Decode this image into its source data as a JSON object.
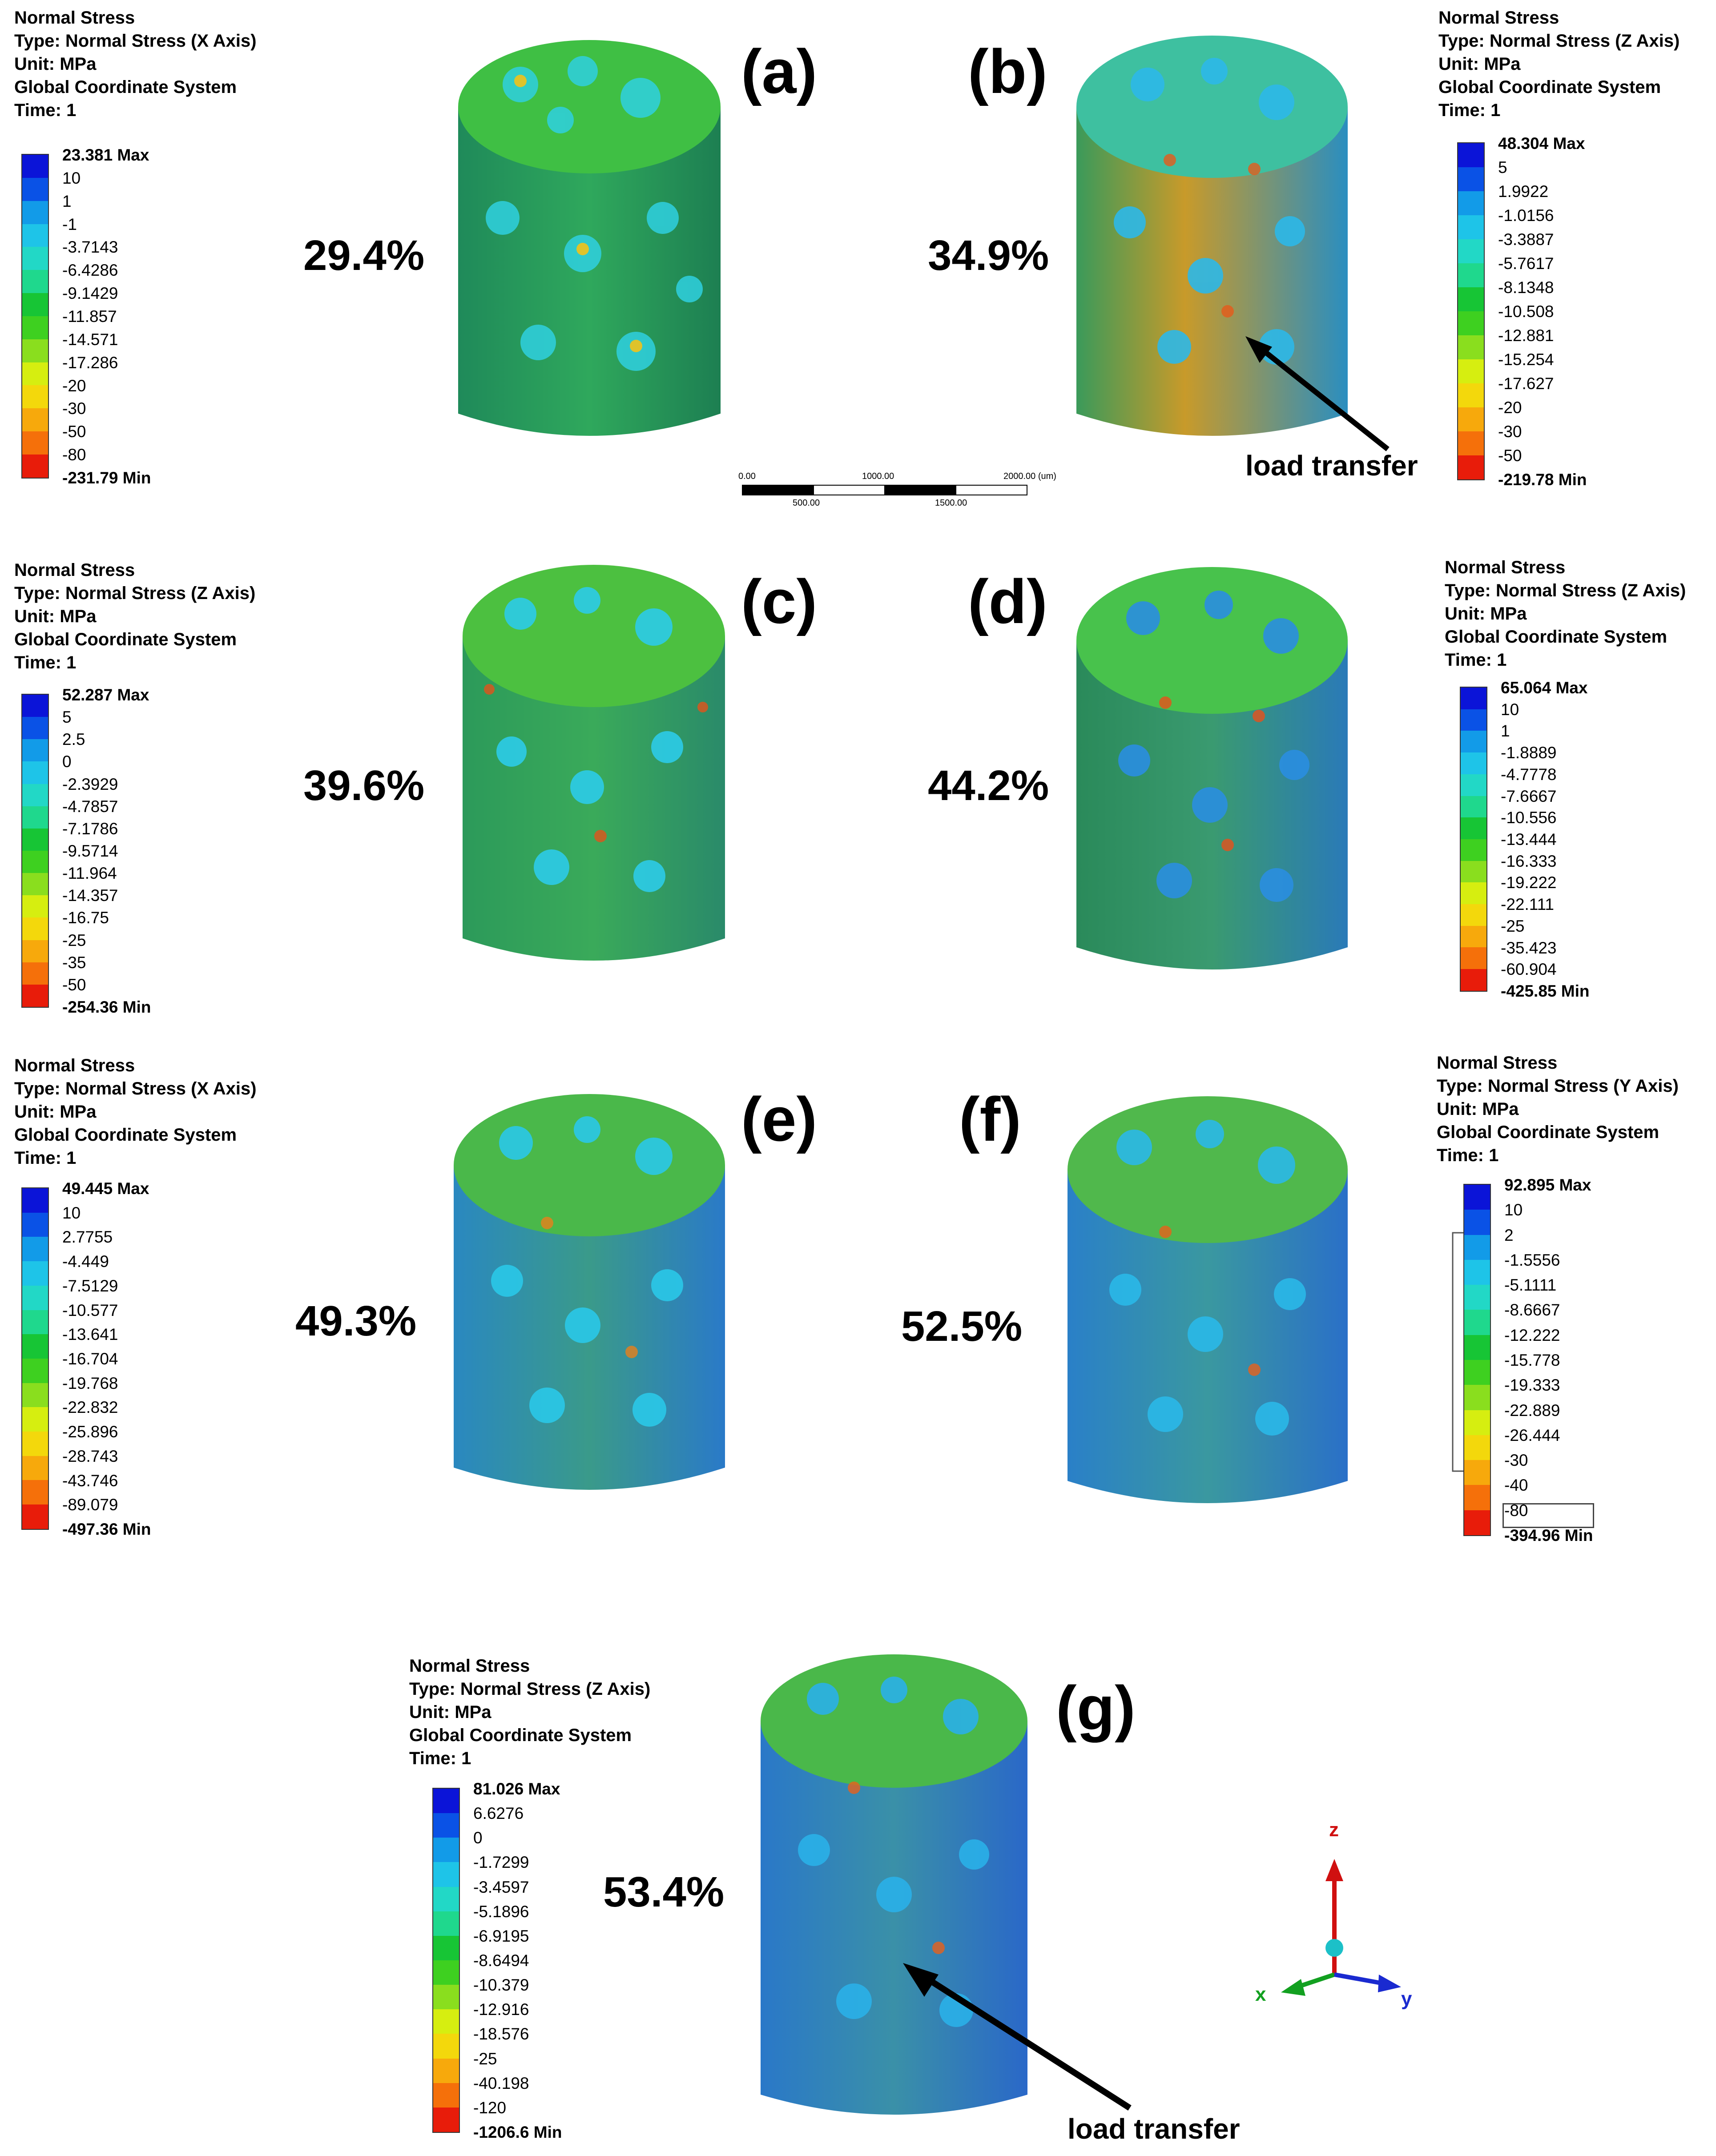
{
  "legends": [
    {
      "id": "a",
      "lines": [
        "Normal Stress",
        "Type: Normal Stress (X Axis)",
        "Unit: MPa",
        "Global Coordinate System",
        "Time: 1"
      ],
      "labels": [
        "23.381 Max",
        "10",
        "1",
        "-1",
        "-3.7143",
        "-6.4286",
        "-9.1429",
        "-11.857",
        "-14.571",
        "-17.286",
        "-20",
        "-30",
        "-50",
        "-80",
        "-231.79 Min"
      ]
    },
    {
      "id": "b",
      "lines": [
        "Normal Stress",
        "Type: Normal Stress (Z Axis)",
        "Unit: MPa",
        "Global Coordinate System",
        "Time: 1"
      ],
      "labels": [
        "48.304 Max",
        "5",
        "1.9922",
        "-1.0156",
        "-3.3887",
        "-5.7617",
        "-8.1348",
        "-10.508",
        "-12.881",
        "-15.254",
        "-17.627",
        "-20",
        "-30",
        "-50",
        "-219.78 Min"
      ]
    },
    {
      "id": "c",
      "lines": [
        "Normal Stress",
        "Type: Normal Stress (Z Axis)",
        "Unit: MPa",
        "Global Coordinate System",
        "Time: 1"
      ],
      "labels": [
        "52.287 Max",
        "5",
        "2.5",
        "0",
        "-2.3929",
        "-4.7857",
        "-7.1786",
        "-9.5714",
        "-11.964",
        "-14.357",
        "-16.75",
        "-25",
        "-35",
        "-50",
        "-254.36 Min"
      ]
    },
    {
      "id": "d",
      "lines": [
        "Normal Stress",
        "Type: Normal Stress (Z Axis)",
        "Unit: MPa",
        "Global Coordinate System",
        "Time: 1"
      ],
      "labels": [
        "65.064 Max",
        "10",
        "1",
        "-1.8889",
        "-4.7778",
        "-7.6667",
        "-10.556",
        "-13.444",
        "-16.333",
        "-19.222",
        "-22.111",
        "-25",
        "-35.423",
        "-60.904",
        "-425.85 Min"
      ]
    },
    {
      "id": "e",
      "lines": [
        "Normal Stress",
        "Type: Normal Stress (X Axis)",
        "Unit: MPa",
        "Global Coordinate System",
        "Time: 1"
      ],
      "labels": [
        "49.445 Max",
        "10",
        "2.7755",
        "-4.449",
        "-7.5129",
        "-10.577",
        "-13.641",
        "-16.704",
        "-19.768",
        "-22.832",
        "-25.896",
        "-28.743",
        "-43.746",
        "-89.079",
        "-497.36 Min"
      ]
    },
    {
      "id": "f",
      "lines": [
        "Normal Stress",
        "Type: Normal Stress (Y Axis)",
        "Unit: MPa",
        "Global Coordinate System",
        "Time: 1"
      ],
      "labels": [
        "92.895 Max",
        "10",
        "2",
        "-1.5556",
        "-5.1111",
        "-8.6667",
        "-12.222",
        "-15.778",
        "-19.333",
        "-22.889",
        "-26.444",
        "-30",
        "-40",
        "-80",
        "-394.96 Min"
      ]
    },
    {
      "id": "g",
      "lines": [
        "Normal Stress",
        "Type: Normal Stress (Z Axis)",
        "Unit: MPa",
        "Global Coordinate System",
        "Time: 1"
      ],
      "labels": [
        "81.026 Max",
        "6.6276",
        "0",
        "-1.7299",
        "-3.4597",
        "-5.1896",
        "-6.9195",
        "-8.6494",
        "-10.379",
        "-12.916",
        "-18.576",
        "-25",
        "-40.198",
        "-120",
        "-1206.6 Min"
      ]
    }
  ],
  "panels": [
    {
      "id": "a",
      "label": "(a)",
      "porosity": "29.4%"
    },
    {
      "id": "b",
      "label": "(b)",
      "porosity": "34.9%"
    },
    {
      "id": "c",
      "label": "(c)",
      "porosity": "39.6%"
    },
    {
      "id": "d",
      "label": "(d)",
      "porosity": "44.2%"
    },
    {
      "id": "e",
      "label": "(e)",
      "porosity": "49.3%"
    },
    {
      "id": "f",
      "label": "(f)",
      "porosity": "52.5%"
    },
    {
      "id": "g",
      "label": "(g)",
      "porosity": "53.4%"
    }
  ],
  "annotations": {
    "load_transfer_b": "load transfer",
    "load_transfer_g": "load transfer"
  },
  "scale_bar": {
    "ticks_top": [
      "0.00",
      "1000.00",
      "2000.00 (um)"
    ],
    "ticks_bottom": [
      "500.00",
      "1500.00"
    ]
  },
  "axes": {
    "z": "z",
    "x": "x",
    "y": "y"
  },
  "colors": {
    "scale": [
      "#0b14d8",
      "#0a52e6",
      "#129be8",
      "#1ec4e8",
      "#22d8c6",
      "#1fd88d",
      "#17c535",
      "#3ed020",
      "#8ade1e",
      "#d6ee10",
      "#f3d80c",
      "#f7a90c",
      "#f5700a",
      "#e81c0a"
    ]
  }
}
